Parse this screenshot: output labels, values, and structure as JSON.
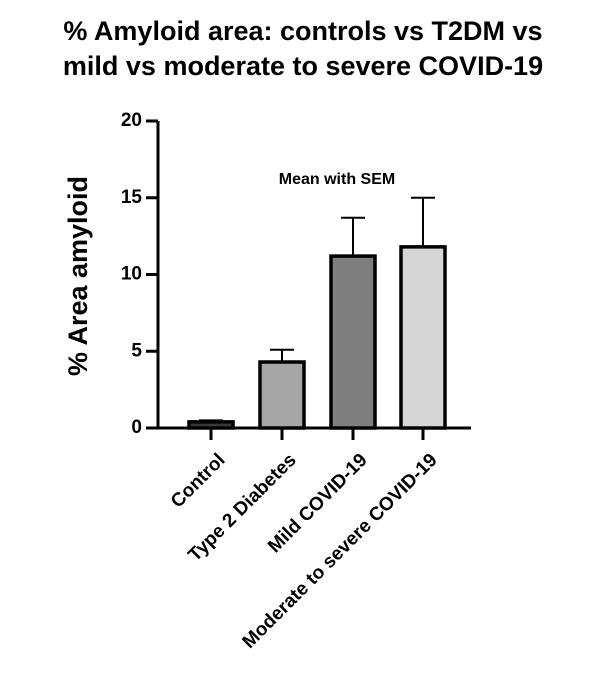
{
  "chart_data": {
    "type": "bar",
    "title_lines": [
      "% Amyloid area: controls vs T2DM vs",
      "mild vs moderate to severe COVID-19"
    ],
    "ylabel": "% Area amyloid",
    "xlabel": "",
    "ylim": [
      0,
      20
    ],
    "yticks": [
      "0",
      "5",
      "10",
      "15",
      "20"
    ],
    "annotation": "Mean with SEM",
    "categories": [
      "Control",
      "Type 2 Diabetes",
      "Mild COVID-19",
      "Moderate to severe COVID-19"
    ],
    "values": [
      0.4,
      4.3,
      11.2,
      11.8
    ],
    "errors": [
      0.1,
      0.8,
      2.5,
      3.2
    ],
    "colors": [
      "#3a3a3a",
      "#a6a6a6",
      "#7f7f7f",
      "#d6d6d6"
    ],
    "grid": false,
    "legend": "none"
  }
}
